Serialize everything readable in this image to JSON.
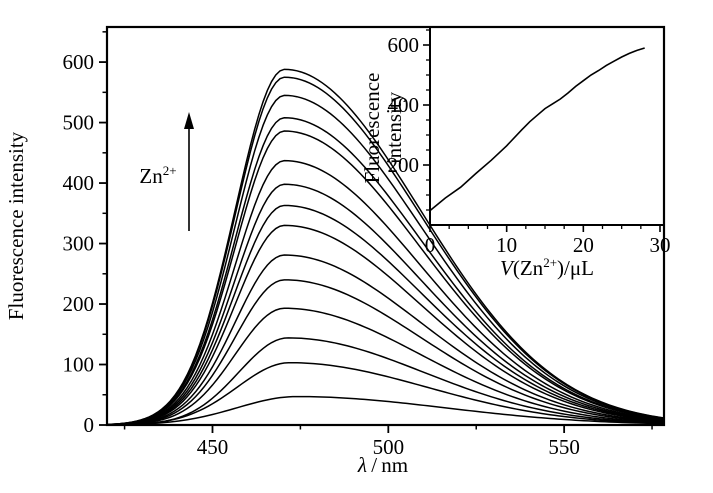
{
  "figure": {
    "background": "#ffffff",
    "line_color": "#000000",
    "description": "Fluorescence emission spectra with increasing Zn2+ volume, with inset of peak intensity vs added volume"
  },
  "chart_data": [
    {
      "id": "main-spectra",
      "type": "line",
      "title": "",
      "ylabel": "Fluorescence intensity",
      "xlabel_parts": [
        {
          "t": "λ",
          "italic": true
        },
        {
          "t": " / nm"
        }
      ],
      "xlim": [
        420,
        578.4
      ],
      "ylim": [
        0,
        658
      ],
      "x_ticks": [
        450,
        500,
        550
      ],
      "x_minor_ticks": [
        425,
        475,
        525,
        575
      ],
      "y_ticks": [
        0,
        100,
        200,
        300,
        400,
        500,
        600
      ],
      "y_minor_ticks": [
        50,
        150,
        250,
        350,
        450,
        550,
        650
      ],
      "grid": false,
      "legend": "none",
      "peak_nm": 470,
      "profile": {
        "center": 470.5,
        "sigma_left": 14,
        "sigma_right": 38.5
      },
      "curves": [
        {
          "peak": 47,
          "center": 474,
          "sigma_left": 17,
          "sigma_right": 42
        },
        {
          "peak": 103,
          "center": 472,
          "sigma_left": 15,
          "sigma_right": 39
        },
        {
          "peak": 144,
          "center": 471.5
        },
        {
          "peak": 193
        },
        {
          "peak": 240
        },
        {
          "peak": 281
        },
        {
          "peak": 330
        },
        {
          "peak": 363
        },
        {
          "peak": 398
        },
        {
          "peak": 437
        },
        {
          "peak": 486
        },
        {
          "peak": 508
        },
        {
          "peak": 545
        },
        {
          "peak": 575
        },
        {
          "peak": 588
        }
      ],
      "annotation": {
        "parts": [
          {
            "t": "Zn"
          },
          {
            "t": "2+",
            "sup": true
          }
        ],
        "arrow_direction": "up"
      }
    },
    {
      "id": "inset-titration",
      "type": "line",
      "title": "",
      "ylabel_lines": [
        "Fluorescence",
        "intensity"
      ],
      "xlabel_parts": [
        {
          "t": "V",
          "italic": true
        },
        {
          "t": "(Zn"
        },
        {
          "t": "2+",
          "sup": true
        },
        {
          "t": ")/μL"
        }
      ],
      "xlim": [
        0,
        30
      ],
      "ylim": [
        0,
        660
      ],
      "x_ticks": [
        0,
        10,
        20,
        30
      ],
      "x_minor_ticks": [
        2.5,
        5,
        7.5,
        12.5,
        15,
        17.5,
        22.5,
        25,
        27.5
      ],
      "y_ticks": [
        200,
        400,
        600
      ],
      "y_minor_ticks": [
        50,
        100,
        150,
        250,
        300,
        350,
        450,
        500,
        550,
        650
      ],
      "grid": false,
      "legend": "none",
      "points": [
        [
          0,
          48
        ],
        [
          2,
          90
        ],
        [
          4,
          126
        ],
        [
          6,
          172
        ],
        [
          8,
          216
        ],
        [
          10,
          264
        ],
        [
          12,
          318
        ],
        [
          13,
          344
        ],
        [
          14,
          366
        ],
        [
          15,
          388
        ],
        [
          16,
          404
        ],
        [
          17,
          420
        ],
        [
          18,
          440
        ],
        [
          19,
          462
        ],
        [
          20,
          481
        ],
        [
          21,
          500
        ],
        [
          22,
          515
        ],
        [
          23,
          532
        ],
        [
          24,
          546
        ],
        [
          25,
          560
        ],
        [
          26,
          572
        ],
        [
          27,
          582
        ],
        [
          28,
          590
        ]
      ]
    }
  ]
}
